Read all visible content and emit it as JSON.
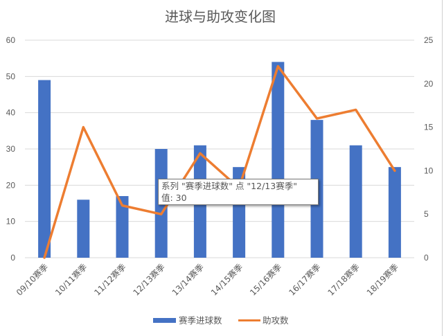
{
  "chart_data": {
    "type": "bar",
    "title": "进球与助攻变化图",
    "categories": [
      "09/10赛季",
      "10/11赛季",
      "11/12赛季",
      "12/13赛季",
      "13/14赛季",
      "14/15赛季",
      "15/16赛季",
      "16/17赛季",
      "17/18赛季",
      "18/19赛季"
    ],
    "series": [
      {
        "name": "赛季进球数",
        "type": "bar",
        "axis": "left",
        "color": "#4472c4",
        "values": [
          49,
          16,
          17,
          30,
          31,
          25,
          54,
          38,
          31,
          25
        ]
      },
      {
        "name": "助攻数",
        "type": "line",
        "axis": "right",
        "color": "#ed7d31",
        "values": [
          0,
          15,
          6,
          5,
          12,
          8,
          22,
          16,
          17,
          10
        ]
      }
    ],
    "xlabel": "",
    "ylabel": "",
    "ylim": [
      0,
      60
    ],
    "yticks": [
      0,
      10,
      20,
      30,
      40,
      50,
      60
    ],
    "y2lim": [
      0,
      25
    ],
    "y2ticks": [
      0,
      5,
      10,
      15,
      20,
      25
    ],
    "grid": true,
    "legend_position": "bottom"
  },
  "tooltip": {
    "line1": "系列 \"赛季进球数\" 点 \"12/13赛季\"",
    "line2": "值: 30"
  }
}
